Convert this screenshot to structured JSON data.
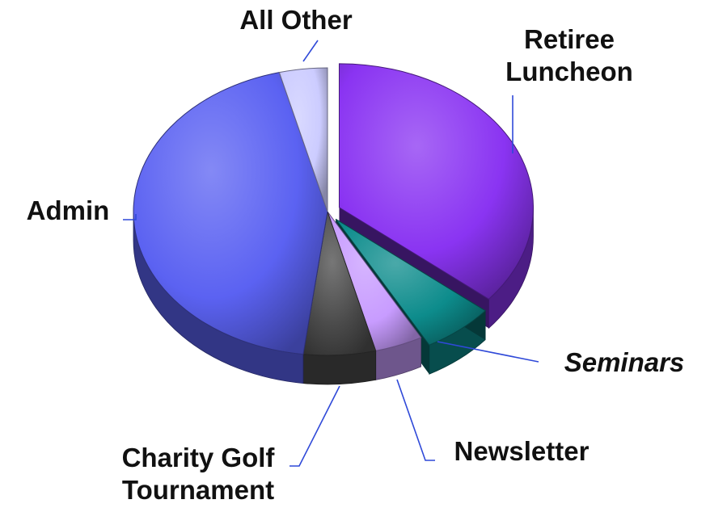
{
  "chart_data": {
    "type": "pie",
    "style": "3d-exploded",
    "slices": [
      {
        "label": "Retiree Luncheon",
        "label_lines": [
          "Retiree",
          "Luncheon"
        ],
        "value": 36.0,
        "color": "#8a34f2",
        "exploded": true,
        "italic": false
      },
      {
        "label": "Seminars",
        "label_lines": [
          "Seminars"
        ],
        "value": 6.0,
        "color": "#0d8c8c",
        "exploded": true,
        "italic": true
      },
      {
        "label": "Newsletter",
        "label_lines": [
          "Newsletter"
        ],
        "value": 4.0,
        "color": "#c89cff",
        "exploded": false,
        "italic": false
      },
      {
        "label": "Charity Golf Tournament",
        "label_lines": [
          "Charity Golf",
          "Tournament"
        ],
        "value": 6.0,
        "color": "#4a4a4a",
        "exploded": false,
        "italic": false
      },
      {
        "label": "Admin",
        "label_lines": [
          "Admin"
        ],
        "value": 44.0,
        "color": "#5b62f2",
        "exploded": false,
        "italic": false
      },
      {
        "label": "All Other",
        "label_lines": [
          "All Other"
        ],
        "value": 4.0,
        "color": "#ccccff",
        "exploded": false,
        "italic": false
      }
    ],
    "leader_color": "#2f49d8"
  }
}
